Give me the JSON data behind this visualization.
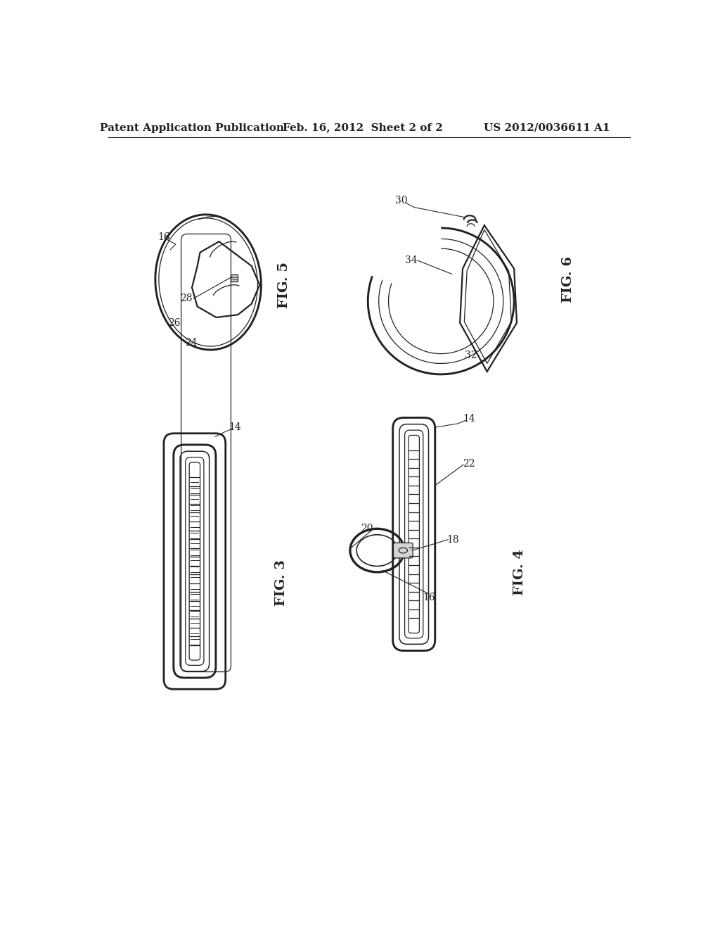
{
  "background_color": "#ffffff",
  "header_left": "Patent Application Publication",
  "header_mid": "Feb. 16, 2012  Sheet 2 of 2",
  "header_right": "US 2012/0036611 A1",
  "header_fontsize": 11,
  "fig5_label": "FIG. 5",
  "fig6_label": "FIG. 6",
  "fig3_label": "FIG. 3",
  "fig4_label": "FIG. 4",
  "label_fontsize": 14,
  "ref_fontsize": 10,
  "line_color": "#222222",
  "line_width": 1.6,
  "thin_line": 0.9
}
